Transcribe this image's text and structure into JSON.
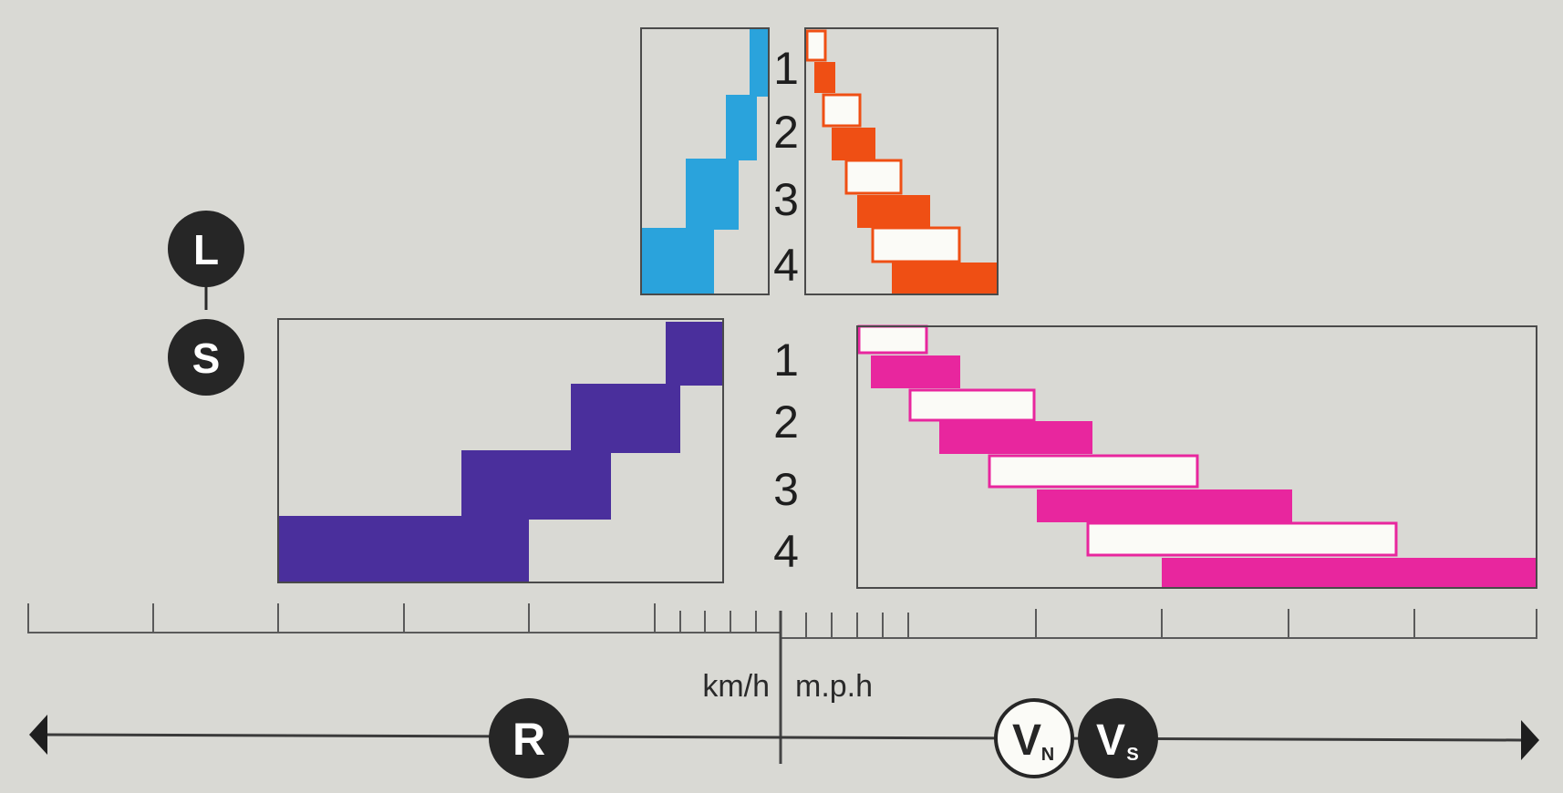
{
  "gear_numbers_top": [
    "1",
    "2",
    "3",
    "4"
  ],
  "gear_numbers_bottom": [
    "1",
    "2",
    "3",
    "4"
  ],
  "badges": {
    "low_range": "L",
    "standard_range": "S",
    "reverse": "R",
    "v_n_main": "V",
    "v_n_sub": "N",
    "v_s_main": "V",
    "v_s_sub": "S"
  },
  "units": {
    "left": "km/h",
    "right": "m.p.h"
  },
  "icons": {
    "arrow_left": "arrow-left-icon",
    "arrow_right": "arrow-right-icon"
  },
  "colors": {
    "background": "#d9d9d4",
    "frame": "#4a4a4a",
    "low_reverse": "#2aa3dc",
    "low_forward": "#ef4f14",
    "std_reverse": "#4a2f9c",
    "std_forward": "#e8269e",
    "badge_dark": "#262626",
    "badge_light": "#fbfbf7"
  }
}
